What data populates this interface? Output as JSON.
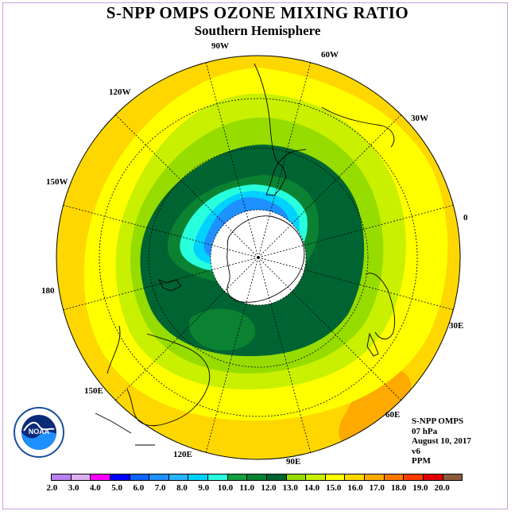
{
  "title": "S-NPP OMPS OZONE MIXING RATIO",
  "subtitle": "Southern Hemisphere",
  "longitude_labels": {
    "lon_90w": "90W",
    "lon_60w": "60W",
    "lon_30w": "30W",
    "lon_0": "0",
    "lon_30e": "30E",
    "lon_60e": "60E",
    "lon_90e": "90E",
    "lon_120e": "120E",
    "lon_150e": "150E",
    "lon_180": "180",
    "lon_150w": "150W",
    "lon_120w": "120W"
  },
  "info": {
    "instrument": "S-NPP OMPS",
    "level": "07 hPa",
    "date": "August 10, 2017",
    "version": "v6",
    "units": "PPM"
  },
  "logo": {
    "name": "NOAA",
    "ring_text": "NATIONAL OCEANIC AND ATMOSPHERIC ADMINISTRATION"
  },
  "colorbar": {
    "ticks": [
      "2.0",
      "3.0",
      "4.0",
      "5.0",
      "6.0",
      "7.0",
      "8.0",
      "9.0",
      "10.0",
      "11.0",
      "12.0",
      "13.0",
      "14.0",
      "15.0",
      "16.0",
      "17.0",
      "18.0",
      "19.0",
      "20.0"
    ],
    "colors": [
      "#b87ff0",
      "#dcb0f0",
      "#ff00ff",
      "#0000ff",
      "#0f64ff",
      "#1e90ff",
      "#28b4ff",
      "#00d2ff",
      "#28ffdc",
      "#14a040",
      "#0a8232",
      "#006432",
      "#96dc00",
      "#c8f000",
      "#ffff00",
      "#ffd700",
      "#ffaa00",
      "#ff7800",
      "#ff3c00",
      "#e10000",
      "#8c5a3c"
    ]
  }
}
